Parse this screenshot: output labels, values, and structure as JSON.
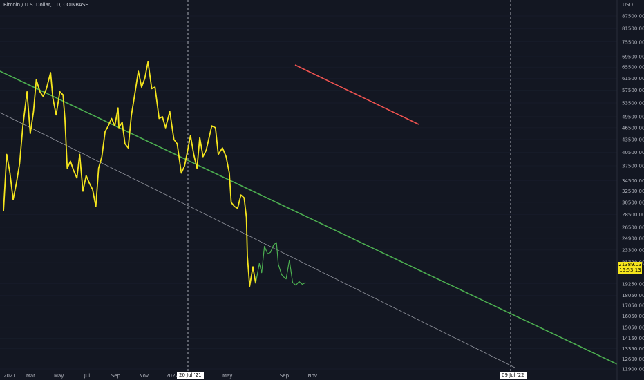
{
  "header": {
    "title": "Bitcoin / U.S. Dollar, 1D, COINBASE",
    "unit": "USD"
  },
  "price_badge": {
    "price": "21389.03",
    "countdown": "15:53:13"
  },
  "date_badges": {
    "left": "20 Jul '21",
    "right": "09 Jul '22"
  },
  "colors": {
    "background": "#131722",
    "price_line_primary": "#f5e51d",
    "price_line_recent": "#4caf50",
    "trend_green": "#4caf50",
    "trend_red": "#ef5350",
    "trend_gray": "#9598a1"
  },
  "chart_data": {
    "type": "line",
    "y_axis_labels": [
      "87500.00",
      "81500.00",
      "75500.00",
      "69500.00",
      "65500.00",
      "61500.00",
      "57500.00",
      "53500.00",
      "49500.00",
      "46500.00",
      "43500.00",
      "40500.00",
      "37500.00",
      "34500.00",
      "32500.00",
      "30500.00",
      "28500.00",
      "26500.00",
      "24900.00",
      "23300.00",
      "21700.00",
      "19250.00",
      "18050.00",
      "17050.00",
      "16050.00",
      "15050.00",
      "14150.00",
      "13350.00",
      "12600.00",
      "11900.00"
    ],
    "x_axis_labels": [
      "2021",
      "Mar",
      "May",
      "Jul",
      "Sep",
      "Nov",
      "2022",
      "Mar",
      "May",
      "Sep",
      "Nov"
    ],
    "x_date_labels": [
      "2021-01-01",
      "2021-03-01",
      "2021-05-01",
      "2021-07-01",
      "2021-09-01",
      "2021-11-01",
      "2022-01-01",
      "2022-03-01",
      "2022-05-01",
      "2022-09-01",
      "2022-11-01"
    ],
    "y_scale": "log",
    "ylim": [
      11900,
      87500
    ],
    "series": [
      {
        "points": [
          [
            "2021-01-01",
            29000
          ],
          [
            "2021-01-08",
            40000
          ],
          [
            "2021-01-15",
            36000
          ],
          [
            "2021-01-22",
            31000
          ],
          [
            "2021-01-29",
            34000
          ],
          [
            "2021-02-05",
            38000
          ],
          [
            "2021-02-12",
            47000
          ],
          [
            "2021-02-21",
            57000
          ],
          [
            "2021-02-28",
            45000
          ],
          [
            "2021-03-07",
            51000
          ],
          [
            "2021-03-13",
            61000
          ],
          [
            "2021-03-21",
            57000
          ],
          [
            "2021-03-28",
            55500
          ],
          [
            "2021-04-04",
            58000
          ],
          [
            "2021-04-13",
            63500
          ],
          [
            "2021-04-18",
            55000
          ],
          [
            "2021-04-25",
            50000
          ],
          [
            "2021-05-03",
            57000
          ],
          [
            "2021-05-10",
            56000
          ],
          [
            "2021-05-14",
            49000
          ],
          [
            "2021-05-19",
            37000
          ],
          [
            "2021-05-26",
            38500
          ],
          [
            "2021-06-02",
            36500
          ],
          [
            "2021-06-09",
            35000
          ],
          [
            "2021-06-15",
            40000
          ],
          [
            "2021-06-22",
            32500
          ],
          [
            "2021-06-29",
            35500
          ],
          [
            "2021-07-06",
            34000
          ],
          [
            "2021-07-13",
            32800
          ],
          [
            "2021-07-20",
            29800
          ],
          [
            "2021-07-26",
            37000
          ],
          [
            "2021-08-02",
            39500
          ],
          [
            "2021-08-09",
            45500
          ],
          [
            "2021-08-16",
            47000
          ],
          [
            "2021-08-23",
            49000
          ],
          [
            "2021-08-30",
            47000
          ],
          [
            "2021-09-06",
            52000
          ],
          [
            "2021-09-08",
            46500
          ],
          [
            "2021-09-15",
            48000
          ],
          [
            "2021-09-21",
            42500
          ],
          [
            "2021-09-28",
            41500
          ],
          [
            "2021-10-05",
            50000
          ],
          [
            "2021-10-12",
            56000
          ],
          [
            "2021-10-20",
            64000
          ],
          [
            "2021-10-27",
            58500
          ],
          [
            "2021-11-03",
            61500
          ],
          [
            "2021-11-10",
            67500
          ],
          [
            "2021-11-18",
            58000
          ],
          [
            "2021-11-25",
            58500
          ],
          [
            "2021-12-04",
            49000
          ],
          [
            "2021-12-11",
            49500
          ],
          [
            "2021-12-18",
            46500
          ],
          [
            "2021-12-27",
            51000
          ],
          [
            "2022-01-05",
            43500
          ],
          [
            "2022-01-12",
            42500
          ],
          [
            "2022-01-21",
            36000
          ],
          [
            "2022-01-28",
            37500
          ],
          [
            "2022-02-04",
            41000
          ],
          [
            "2022-02-10",
            44500
          ],
          [
            "2022-02-17",
            40000
          ],
          [
            "2022-02-24",
            37000
          ],
          [
            "2022-03-02",
            44000
          ],
          [
            "2022-03-09",
            39500
          ],
          [
            "2022-03-16",
            41000
          ],
          [
            "2022-03-28",
            47000
          ],
          [
            "2022-04-05",
            46500
          ],
          [
            "2022-04-11",
            40000
          ],
          [
            "2022-04-20",
            41500
          ],
          [
            "2022-04-28",
            39500
          ],
          [
            "2022-05-05",
            36000
          ],
          [
            "2022-05-09",
            30500
          ],
          [
            "2022-05-16",
            29800
          ],
          [
            "2022-05-23",
            29500
          ],
          [
            "2022-05-30",
            31800
          ],
          [
            "2022-06-06",
            31300
          ],
          [
            "2022-06-11",
            28000
          ],
          [
            "2022-06-13",
            22500
          ],
          [
            "2022-06-18",
            19000
          ],
          [
            "2022-06-25",
            21200
          ],
          [
            "2022-07-01",
            19300
          ]
        ],
        "color": "#f5e51d"
      },
      {
        "points": [
          [
            "2022-07-01",
            19300
          ],
          [
            "2022-07-09",
            21600
          ],
          [
            "2022-07-14",
            20500
          ],
          [
            "2022-07-20",
            23800
          ],
          [
            "2022-07-27",
            22800
          ],
          [
            "2022-08-02",
            23000
          ],
          [
            "2022-08-09",
            24000
          ],
          [
            "2022-08-15",
            24300
          ],
          [
            "2022-08-19",
            21500
          ],
          [
            "2022-08-26",
            20300
          ],
          [
            "2022-08-31",
            20000
          ],
          [
            "2022-09-05",
            19800
          ],
          [
            "2022-09-12",
            22000
          ],
          [
            "2022-09-19",
            19400
          ],
          [
            "2022-09-26",
            19100
          ],
          [
            "2022-10-03",
            19500
          ],
          [
            "2022-10-10",
            19200
          ],
          [
            "2022-10-17",
            19400
          ]
        ],
        "color": "#4caf50"
      }
    ]
  }
}
